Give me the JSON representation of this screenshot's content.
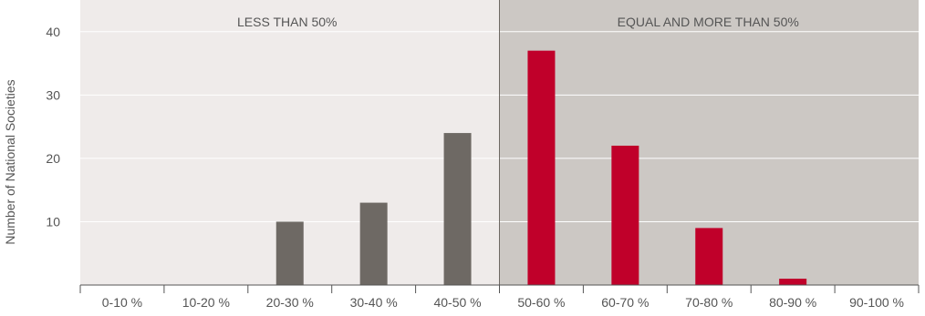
{
  "chart_data": {
    "type": "bar",
    "title": "",
    "xlabel": "",
    "ylabel": "Number of National Societies",
    "categories": [
      "0-10 %",
      "10-20 %",
      "20-30 %",
      "30-40 %",
      "40-50 %",
      "50-60 %",
      "60-70 %",
      "70-80 %",
      "80-90 %",
      "90-100 %"
    ],
    "values": [
      0,
      0,
      10,
      13,
      24,
      37,
      22,
      9,
      1,
      0
    ],
    "ylim": [
      0,
      45
    ],
    "yticks": [
      "10",
      "20",
      "30",
      "40"
    ],
    "grid": true,
    "bands": [
      {
        "label": "LESS THAN 50%",
        "color": "#efebea"
      },
      {
        "label": "EQUAL AND MORE THAN 50%",
        "color": "#ccc8c4"
      }
    ],
    "colors": {
      "below": "#6e6964",
      "above": "#c0002a"
    }
  }
}
